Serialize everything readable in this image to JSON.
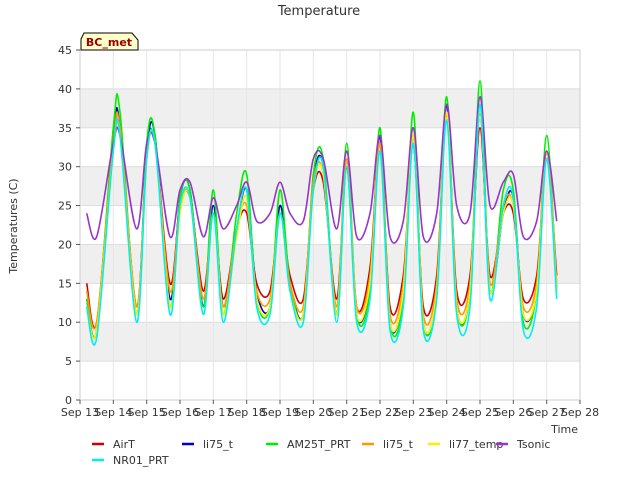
{
  "chart_data": {
    "type": "line",
    "title": "Temperature",
    "xlabel": "Time",
    "ylabel": "Temperatures (C)",
    "station_label": "BC_met",
    "ylim": [
      0,
      45
    ],
    "yticks": [
      0,
      5,
      10,
      15,
      20,
      25,
      30,
      35,
      40,
      45
    ],
    "xlim": [
      13,
      28
    ],
    "xticks": [
      {
        "v": 13,
        "label": "Sep 13"
      },
      {
        "v": 14,
        "label": "Sep 14"
      },
      {
        "v": 15,
        "label": "Sep 15"
      },
      {
        "v": 16,
        "label": "Sep 16"
      },
      {
        "v": 17,
        "label": "Sep 17"
      },
      {
        "v": 18,
        "label": "Sep 18"
      },
      {
        "v": 19,
        "label": "Sep 19"
      },
      {
        "v": 20,
        "label": "Sep 20"
      },
      {
        "v": 21,
        "label": "Sep 21"
      },
      {
        "v": 22,
        "label": "Sep 22"
      },
      {
        "v": 23,
        "label": "Sep 23"
      },
      {
        "v": 24,
        "label": "Sep 24"
      },
      {
        "v": 25,
        "label": "Sep 25"
      },
      {
        "v": 26,
        "label": "Sep 26"
      },
      {
        "v": 27,
        "label": "Sep 27"
      },
      {
        "v": 28,
        "label": "Sep 28"
      }
    ],
    "grid": true,
    "banded_background": true,
    "legend_position": "bottom",
    "series": [
      {
        "name": "AirT",
        "color": "#cc0000",
        "x": [
          13.2,
          13.5,
          14.0,
          14.2,
          14.7,
          15.0,
          15.25,
          15.7,
          16.0,
          16.3,
          16.7,
          17.0,
          17.3,
          17.7,
          18.0,
          18.3,
          18.7,
          19.0,
          19.3,
          19.7,
          20.0,
          20.3,
          20.7,
          21.0,
          21.3,
          21.7,
          22.0,
          22.3,
          22.7,
          23.0,
          23.3,
          23.7,
          24.0,
          24.3,
          24.7,
          25.0,
          25.3,
          25.7,
          26.0,
          26.3,
          26.7,
          27.0,
          27.3
        ],
        "y": [
          15,
          10,
          33,
          35,
          12,
          32,
          33,
          15,
          25,
          26,
          14,
          24,
          13,
          22,
          24,
          15,
          14,
          24,
          16,
          13,
          27,
          28,
          13,
          30,
          12,
          17,
          33,
          12,
          16,
          33,
          12,
          16,
          37,
          14,
          16,
          35,
          16,
          24,
          24,
          13,
          16,
          31,
          16
        ]
      },
      {
        "name": "li75_t",
        "color": "#0000cc",
        "x": [
          13.2,
          13.5,
          14.0,
          14.2,
          14.7,
          15.0,
          15.25,
          15.7,
          16.0,
          16.3,
          16.7,
          17.0,
          17.3,
          17.7,
          18.0,
          18.3,
          18.7,
          19.0,
          19.3,
          19.7,
          20.0,
          20.3,
          20.7,
          21.0,
          21.3,
          21.7,
          22.0,
          22.3,
          22.7,
          23.0,
          23.3,
          23.7,
          24.0,
          24.3,
          24.7,
          25.0,
          25.3,
          25.7,
          26.0,
          26.3,
          26.7,
          27.0,
          27.3
        ],
        "y": [
          13,
          9,
          34,
          35,
          11,
          32,
          34,
          13,
          26,
          27,
          12,
          25,
          12,
          22,
          27,
          14,
          12,
          25,
          15,
          11,
          28,
          30,
          11,
          31,
          11,
          15,
          34,
          10,
          14,
          34,
          10,
          14,
          38,
          12,
          14,
          37,
          14,
          24,
          26,
          11,
          14,
          32,
          14
        ]
      },
      {
        "name": "AM25T_PRT",
        "color": "#00ee00",
        "x": [
          13.2,
          13.5,
          14.0,
          14.2,
          14.7,
          15.0,
          15.25,
          15.7,
          16.0,
          16.3,
          16.7,
          17.0,
          17.3,
          17.7,
          18.0,
          18.3,
          18.7,
          19.0,
          19.3,
          19.7,
          20.0,
          20.3,
          20.7,
          21.0,
          21.3,
          21.7,
          22.0,
          22.3,
          22.7,
          23.0,
          23.3,
          23.7,
          24.0,
          24.3,
          24.7,
          25.0,
          25.3,
          25.7,
          26.0,
          26.3,
          26.7,
          27.0,
          27.3
        ],
        "y": [
          13,
          9,
          35,
          37,
          11,
          33,
          34,
          12,
          26,
          27,
          12,
          27,
          11,
          24,
          29,
          13,
          12,
          27,
          15,
          11,
          29,
          31,
          11,
          33,
          11,
          14,
          35,
          10,
          13,
          37,
          10,
          14,
          39,
          12,
          14,
          41,
          14,
          27,
          27,
          10,
          14,
          34,
          14
        ]
      },
      {
        "name": "li75_t",
        "color": "#ff9900",
        "x": [
          13.2,
          13.5,
          14.0,
          14.2,
          14.7,
          15.0,
          15.25,
          15.7,
          16.0,
          16.3,
          16.7,
          17.0,
          17.3,
          17.7,
          18.0,
          18.3,
          18.7,
          19.0,
          19.3,
          19.7,
          20.0,
          20.3,
          20.7,
          21.0,
          21.3,
          21.7,
          22.0,
          22.3,
          22.7,
          23.0,
          23.3,
          23.7,
          24.0,
          24.3,
          24.7,
          25.0,
          25.3,
          25.7,
          26.0,
          26.3,
          26.7,
          27.0,
          27.3
        ],
        "y": [
          14,
          10,
          33,
          35,
          12,
          31,
          33,
          14,
          25,
          26,
          13,
          24,
          12,
          22,
          25,
          14,
          13,
          24,
          15,
          12,
          28,
          29,
          12,
          31,
          12,
          16,
          33,
          11,
          15,
          34,
          11,
          15,
          37,
          13,
          15,
          37,
          15,
          25,
          25,
          12,
          15,
          32,
          15
        ]
      },
      {
        "name": "li77_temp",
        "color": "#ffee00",
        "x": [
          13.2,
          13.5,
          14.0,
          14.2,
          14.7,
          15.0,
          15.25,
          15.7,
          16.0,
          16.3,
          16.7,
          17.0,
          17.3,
          17.7,
          18.0,
          18.3,
          18.7,
          19.0,
          19.3,
          19.7,
          20.0,
          20.3,
          20.7,
          21.0,
          21.3,
          21.7,
          22.0,
          22.3,
          22.7,
          23.0,
          23.3,
          23.7,
          24.0,
          24.3,
          24.7,
          25.0,
          25.3,
          25.7,
          26.0,
          26.3,
          26.7,
          27.0,
          27.3
        ],
        "y": [
          12,
          9,
          32,
          34,
          11,
          31,
          33,
          12,
          24,
          26,
          11,
          24,
          11,
          21,
          26,
          13,
          12,
          24,
          14,
          11,
          27,
          29,
          11,
          30,
          11,
          15,
          32,
          10,
          14,
          34,
          10,
          14,
          37,
          12,
          14,
          37,
          14,
          24,
          25,
          11,
          14,
          31,
          14
        ]
      },
      {
        "name": "Tsonic",
        "color": "#9933cc",
        "x": [
          13.2,
          13.5,
          14.0,
          14.2,
          14.7,
          15.0,
          15.25,
          15.7,
          16.0,
          16.3,
          16.7,
          17.0,
          17.3,
          17.7,
          18.0,
          18.3,
          18.7,
          19.0,
          19.3,
          19.7,
          20.0,
          20.3,
          20.7,
          21.0,
          21.3,
          21.7,
          22.0,
          22.3,
          22.7,
          23.0,
          23.3,
          23.7,
          24.0,
          24.3,
          24.7,
          25.0,
          25.3,
          25.7,
          26.0,
          26.3,
          26.7,
          27.0,
          27.3
        ],
        "y": [
          24,
          21,
          33,
          34,
          22,
          33,
          33,
          21,
          27,
          28,
          21,
          26,
          22,
          25,
          28,
          23,
          24,
          28,
          24,
          23,
          31,
          31,
          22,
          32,
          21,
          24,
          34,
          21,
          23,
          35,
          21,
          24,
          38,
          25,
          24,
          39,
          25,
          28,
          29,
          21,
          23,
          32,
          23
        ]
      },
      {
        "name": "NR01_PRT",
        "color": "#00eeee",
        "x": [
          13.2,
          13.5,
          14.0,
          14.2,
          14.7,
          15.0,
          15.25,
          15.7,
          16.0,
          16.3,
          16.7,
          17.0,
          17.3,
          17.7,
          18.0,
          18.3,
          18.7,
          19.0,
          19.3,
          19.7,
          20.0,
          20.3,
          20.7,
          21.0,
          21.3,
          21.7,
          22.0,
          22.3,
          22.7,
          23.0,
          23.3,
          23.7,
          24.0,
          24.3,
          24.7,
          25.0,
          25.3,
          25.7,
          26.0,
          26.3,
          26.7,
          27.0,
          27.3
        ],
        "y": [
          12,
          8,
          32,
          34,
          10,
          31,
          33,
          11,
          25,
          26,
          11,
          24,
          10,
          22,
          27,
          12,
          11,
          24,
          14,
          10,
          27,
          30,
          10,
          30,
          10,
          13,
          32,
          9,
          12,
          33,
          9,
          13,
          36,
          11,
          12,
          38,
          13,
          25,
          26,
          9,
          12,
          31,
          13
        ]
      }
    ]
  }
}
